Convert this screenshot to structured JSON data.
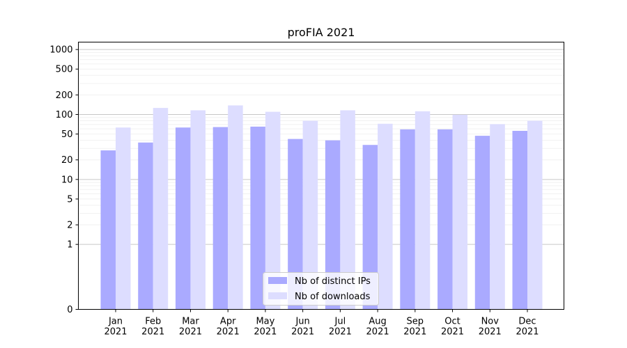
{
  "chart_data": {
    "type": "bar",
    "title": "proFIA 2021",
    "xlabel": "",
    "ylabel": "",
    "yscale": "symlog",
    "ylim": [
      0,
      1300
    ],
    "yticks": [
      0,
      1,
      2,
      5,
      10,
      20,
      50,
      100,
      200,
      500,
      1000
    ],
    "categories": [
      "Jan\n2021",
      "Feb\n2021",
      "Mar\n2021",
      "Apr\n2021",
      "May\n2021",
      "Jun\n2021",
      "Jul\n2021",
      "Aug\n2021",
      "Sep\n2021",
      "Oct\n2021",
      "Nov\n2021",
      "Dec\n2021"
    ],
    "series": [
      {
        "name": "Nb of distinct IPs",
        "color": "#aaaaff",
        "values": [
          28,
          37,
          63,
          64,
          65,
          42,
          40,
          34,
          59,
          59,
          47,
          56
        ]
      },
      {
        "name": "Nb of downloads",
        "color": "#ddddff",
        "values": [
          63,
          126,
          116,
          138,
          110,
          80,
          116,
          72,
          112,
          99,
          71,
          80
        ]
      }
    ],
    "grid": true,
    "legend": "lower-center"
  }
}
